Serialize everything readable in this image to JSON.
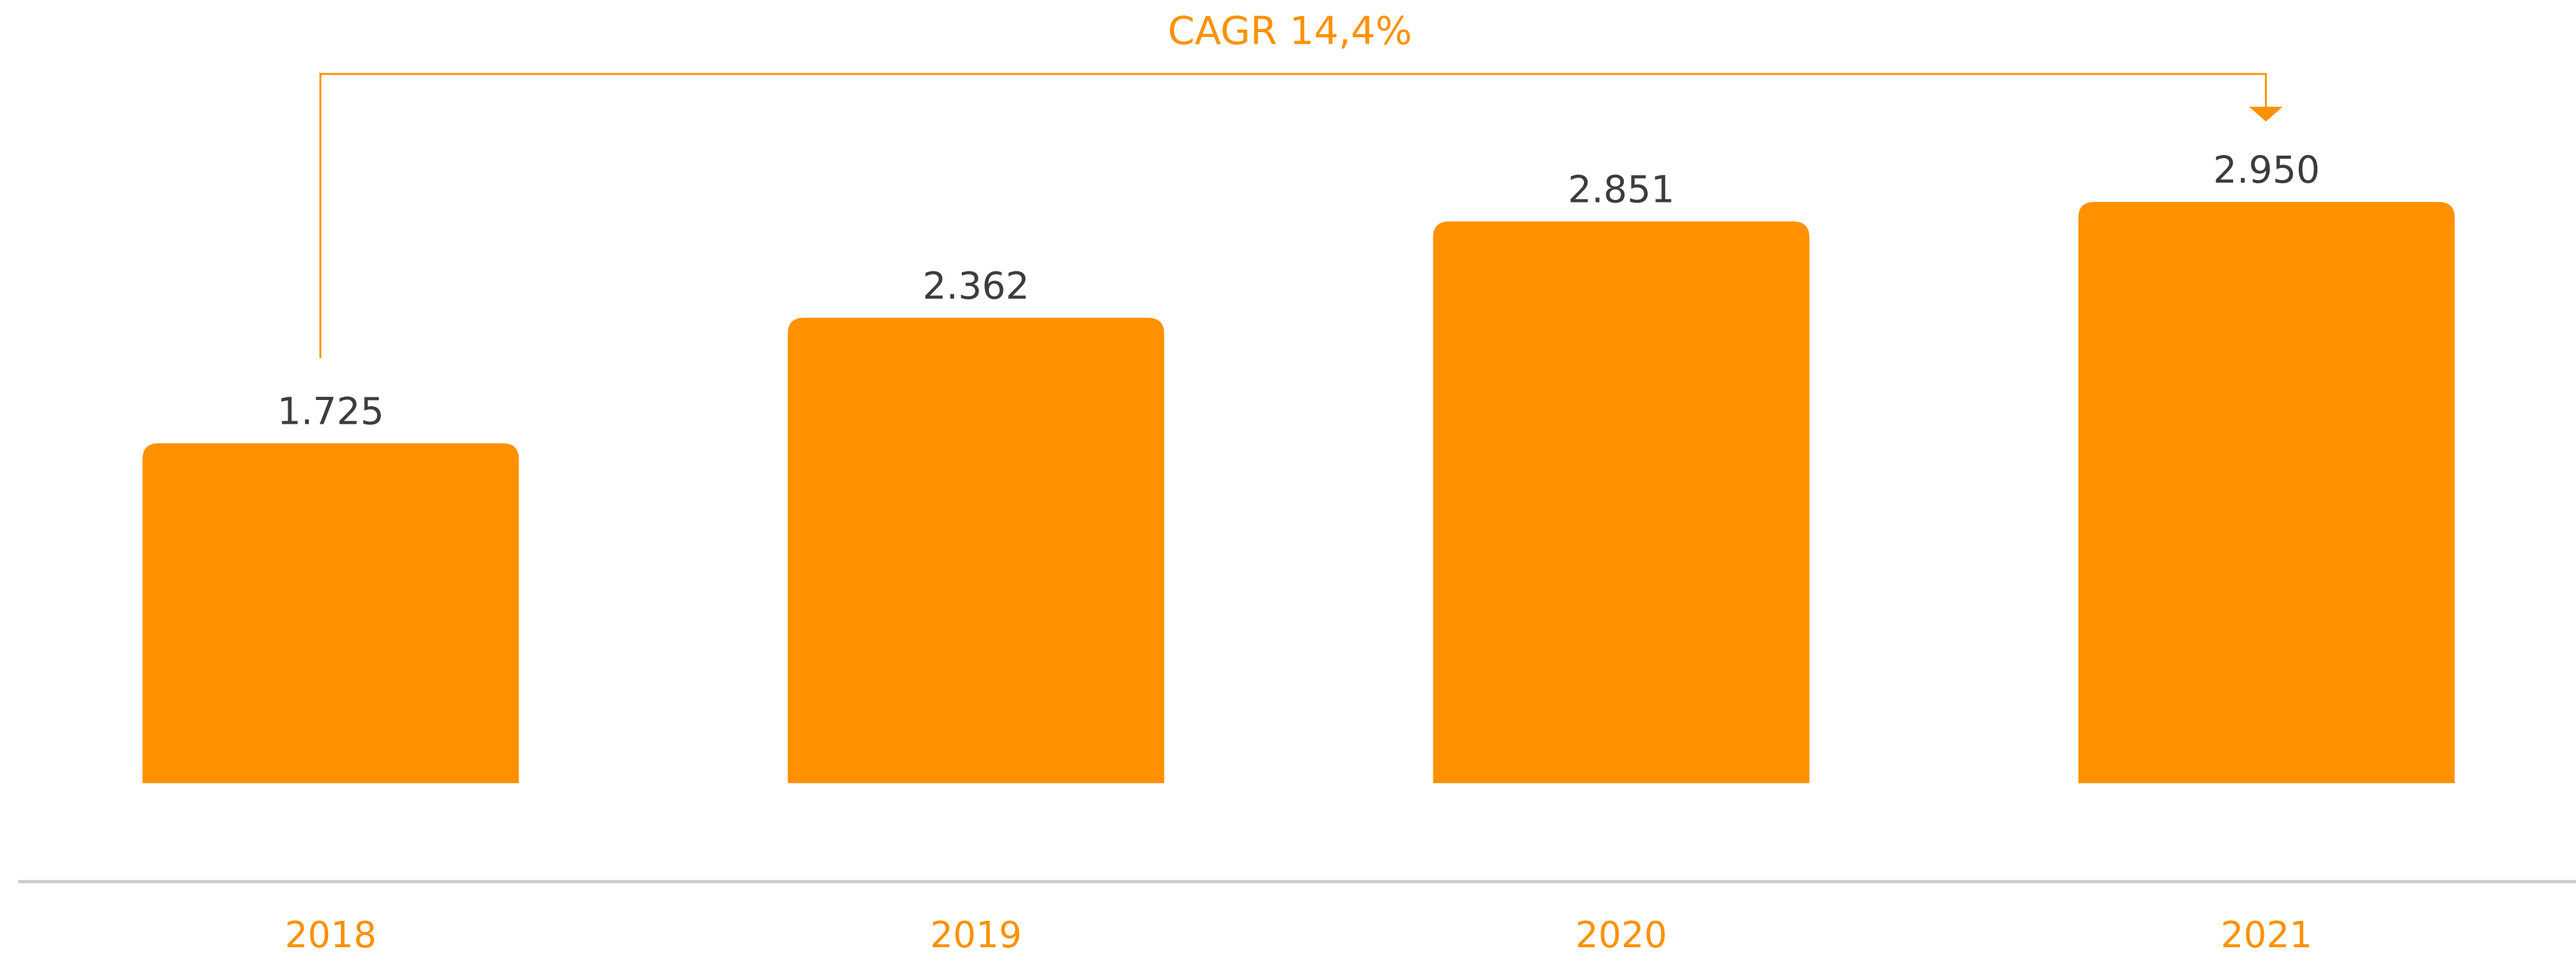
{
  "chart_data": {
    "type": "bar",
    "annotation": "CAGR 14,4%",
    "categories": [
      "2018",
      "2019",
      "2020",
      "2021"
    ],
    "values": [
      1725,
      2362,
      2851,
      2950
    ],
    "value_labels": [
      "1.725",
      "2.362",
      "2.851",
      "2.950"
    ],
    "color": "#ff9100",
    "label_color": "#3c3c3c",
    "ylim": [
      -500,
      3975
    ]
  }
}
